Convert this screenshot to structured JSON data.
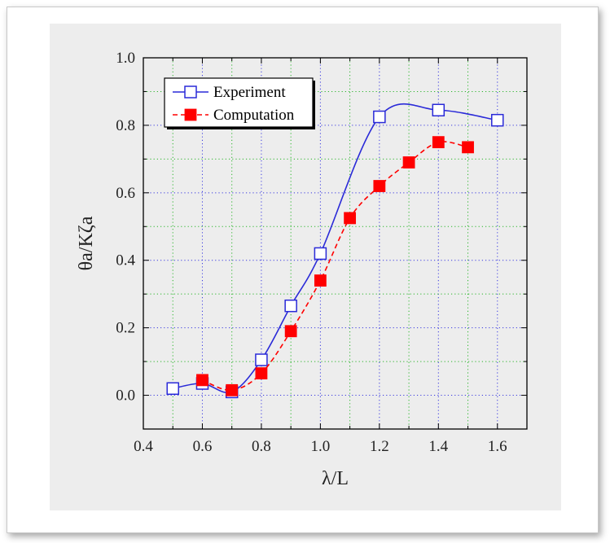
{
  "chart_data": {
    "type": "line",
    "xlabel": "λ/L",
    "ylabel": "θa/Kζa",
    "xlim": [
      0.4,
      1.7
    ],
    "ylim": [
      -0.1,
      1.0
    ],
    "xticks": [
      "0.4",
      "0.6",
      "0.8",
      "1.0",
      "1.2",
      "1.4",
      "1.6"
    ],
    "yticks": [
      "0.0",
      "0.2",
      "0.4",
      "0.6",
      "0.8",
      "1.0"
    ],
    "grid": true,
    "legend_position": "top-left",
    "series": [
      {
        "name": "Experiment",
        "color": "#2a2ad8",
        "marker": "open-square",
        "line": "solid",
        "x": [
          0.5,
          0.6,
          0.7,
          0.8,
          0.9,
          1.0,
          1.2,
          1.4,
          1.6
        ],
        "y": [
          0.02,
          0.035,
          0.01,
          0.105,
          0.265,
          0.42,
          0.825,
          0.845,
          0.815
        ]
      },
      {
        "name": "Computation",
        "color": "#ff0000",
        "marker": "filled-square",
        "line": "dashed",
        "x": [
          0.6,
          0.7,
          0.8,
          0.9,
          1.0,
          1.1,
          1.2,
          1.3,
          1.4,
          1.5
        ],
        "y": [
          0.045,
          0.015,
          0.065,
          0.19,
          0.34,
          0.525,
          0.62,
          0.69,
          0.75,
          0.735
        ]
      }
    ]
  }
}
